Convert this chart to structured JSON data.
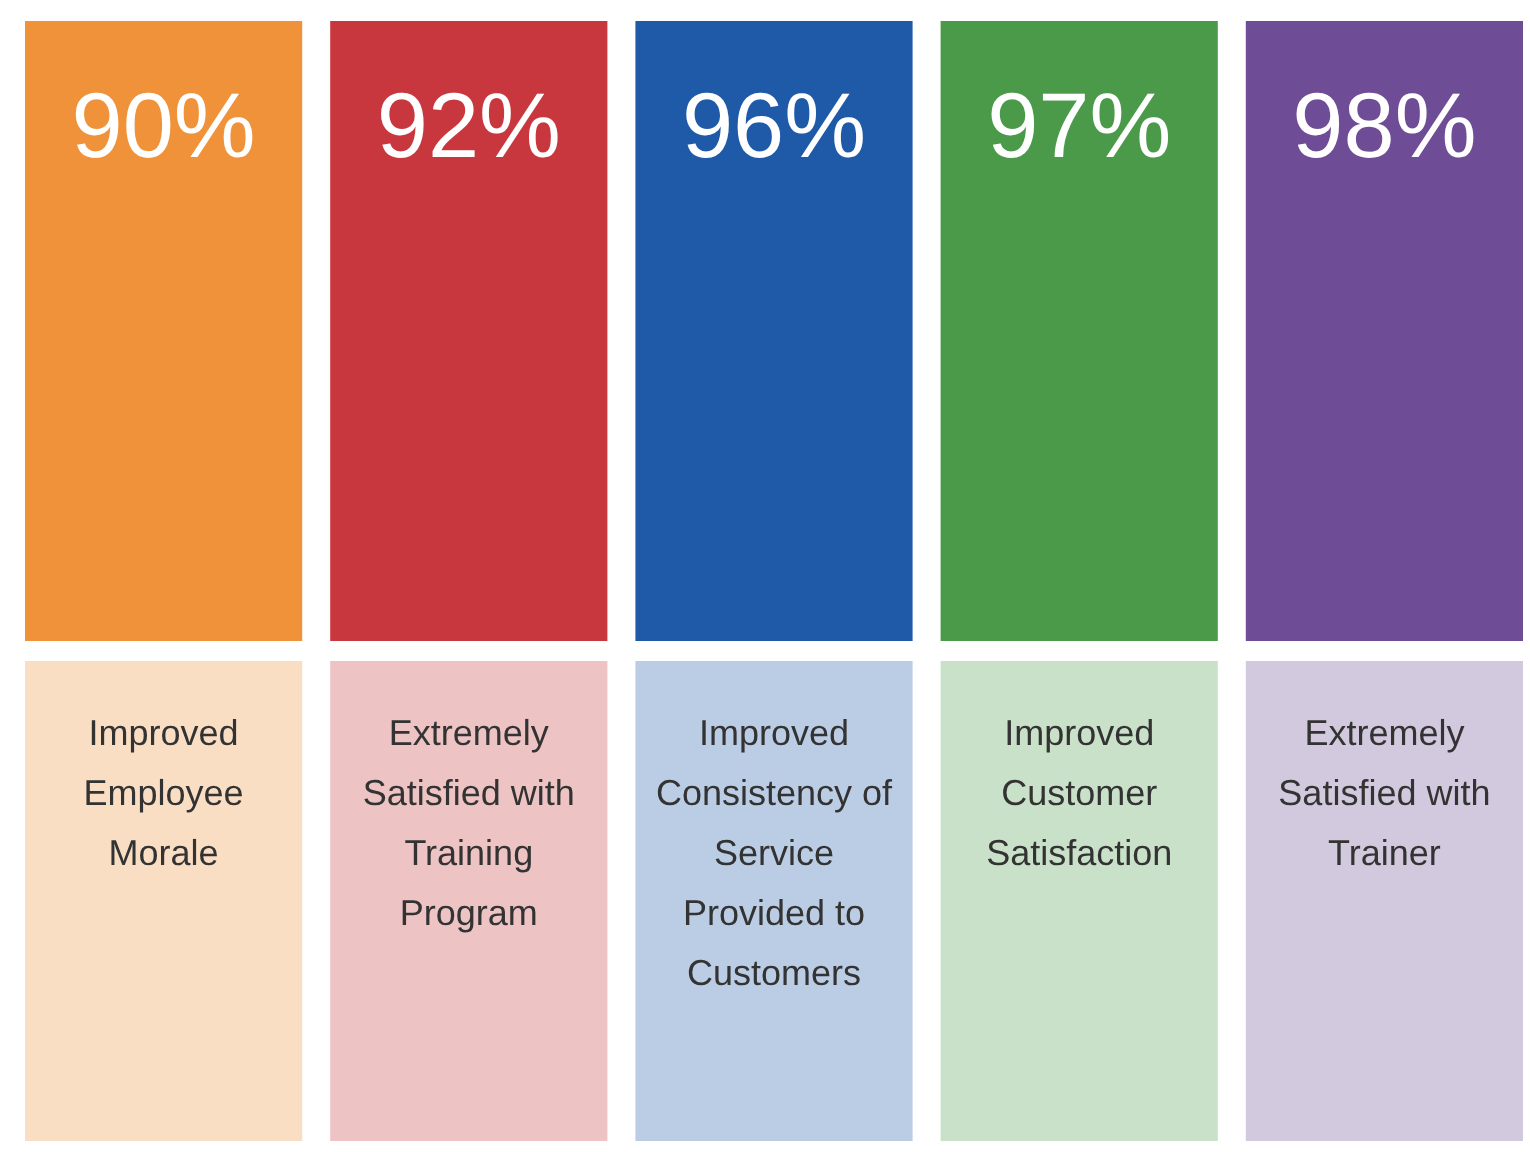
{
  "chart_data": {
    "type": "other",
    "categories": [
      "Improved Employee Morale",
      "Extremely Satisfied with Training Program",
      "Improved Consistency of Service Provided to Customers",
      "Improved Customer Satisfaction",
      "Extremely Satisfied with Trainer"
    ],
    "values": [
      90,
      92,
      96,
      97,
      98
    ],
    "value_labels": [
      "90%",
      "92%",
      "96%",
      "97%",
      "98%"
    ],
    "colors": [
      "#f0923a",
      "#c8373d",
      "#1f5aa8",
      "#4a9a4a",
      "#6e4c96"
    ]
  }
}
